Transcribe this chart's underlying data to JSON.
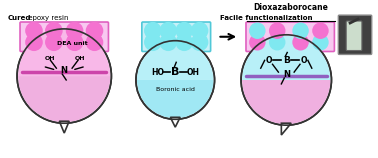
{
  "bg_color": "#ffffff",
  "pink_color": "#f472d0",
  "light_pink": "#f8b8e8",
  "cyan_color": "#7fe8f0",
  "light_cyan": "#b8f0f8",
  "purple_color": "#c080e0",
  "bubble_bg_pink": "#f0b0e0",
  "bubble_bg_cyan": "#a0e8f4",
  "bubble_edge": "#333333",
  "title_dioxaza": "Dioxazaborocane",
  "label_dea": "DEA unit",
  "label_boronic": "Boronic acid",
  "label_cured": "Cured epoxy resin",
  "label_facile": "Facile functionalization",
  "arrow_color": "#111111",
  "rect_border_pink": "#e060c0",
  "rect_border_cyan": "#50c8d8",
  "rect_fill_pink": "#f8c8f0",
  "rect_fill_cyan": "#c8f0f8",
  "photo_bg": "#404040",
  "line_pink": "#cc44aa",
  "line_purple": "#9060c0"
}
